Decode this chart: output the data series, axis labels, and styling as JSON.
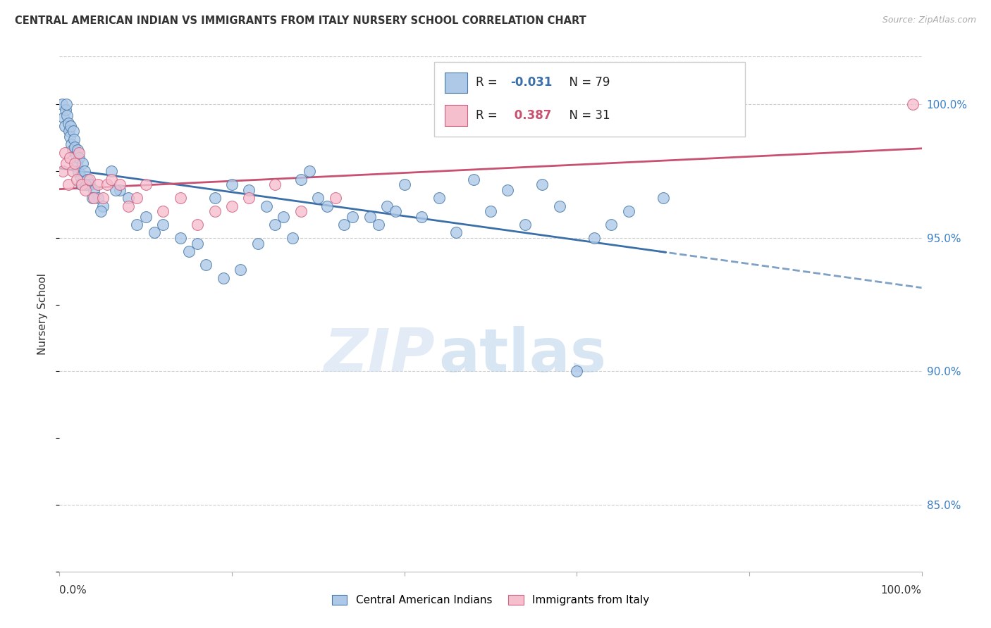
{
  "title": "CENTRAL AMERICAN INDIAN VS IMMIGRANTS FROM ITALY NURSERY SCHOOL CORRELATION CHART",
  "source": "Source: ZipAtlas.com",
  "ylabel": "Nursery School",
  "r_blue": -0.031,
  "n_blue": 79,
  "r_pink": 0.387,
  "n_pink": 31,
  "xlim": [
    0.0,
    100.0
  ],
  "ylim": [
    82.5,
    101.8
  ],
  "yticks": [
    85.0,
    90.0,
    95.0,
    100.0
  ],
  "blue_color": "#aec9e8",
  "blue_edge_color": "#4878a8",
  "blue_line_color": "#3b6fa8",
  "pink_color": "#f5bfce",
  "pink_edge_color": "#d06080",
  "pink_line_color": "#c85070",
  "legend_r_blue_color": "#3b6fa8",
  "legend_r_pink_color": "#c85070",
  "watermark_zip": "ZIP",
  "watermark_atlas": "atlas",
  "background_color": "#ffffff",
  "blue_scatter_x": [
    0.3,
    0.5,
    0.6,
    0.7,
    0.8,
    0.9,
    1.0,
    1.1,
    1.2,
    1.3,
    1.4,
    1.5,
    1.6,
    1.7,
    1.8,
    1.9,
    2.0,
    2.1,
    2.2,
    2.3,
    2.4,
    2.5,
    2.7,
    2.9,
    3.2,
    3.5,
    4.0,
    4.5,
    5.0,
    6.0,
    7.0,
    8.0,
    10.0,
    12.0,
    14.0,
    16.0,
    18.0,
    20.0,
    22.0,
    24.0,
    26.0,
    28.0,
    30.0,
    33.0,
    36.0,
    38.0,
    40.0,
    44.0,
    48.0,
    52.0,
    56.0,
    60.0,
    3.0,
    3.8,
    4.8,
    6.5,
    9.0,
    11.0,
    15.0,
    17.0,
    19.0,
    21.0,
    23.0,
    25.0,
    27.0,
    29.0,
    31.0,
    34.0,
    37.0,
    39.0,
    42.0,
    46.0,
    50.0,
    54.0,
    58.0,
    62.0,
    64.0,
    66.0,
    70.0
  ],
  "blue_scatter_y": [
    100.0,
    99.5,
    99.2,
    99.8,
    100.0,
    99.6,
    99.3,
    99.0,
    98.8,
    99.2,
    98.5,
    98.3,
    99.0,
    98.7,
    98.4,
    98.1,
    97.8,
    98.3,
    97.5,
    98.0,
    97.3,
    97.0,
    97.8,
    97.5,
    97.2,
    97.0,
    96.8,
    96.5,
    96.2,
    97.5,
    96.8,
    96.5,
    95.8,
    95.5,
    95.0,
    94.8,
    96.5,
    97.0,
    96.8,
    96.2,
    95.8,
    97.2,
    96.5,
    95.5,
    95.8,
    96.2,
    97.0,
    96.5,
    97.2,
    96.8,
    97.0,
    90.0,
    97.0,
    96.5,
    96.0,
    96.8,
    95.5,
    95.2,
    94.5,
    94.0,
    93.5,
    93.8,
    94.8,
    95.5,
    95.0,
    97.5,
    96.2,
    95.8,
    95.5,
    96.0,
    95.8,
    95.2,
    96.0,
    95.5,
    96.2,
    95.0,
    95.5,
    96.0,
    96.5
  ],
  "pink_scatter_x": [
    0.4,
    0.6,
    0.8,
    1.0,
    1.2,
    1.5,
    1.8,
    2.0,
    2.3,
    2.6,
    3.0,
    3.5,
    4.0,
    4.5,
    5.0,
    5.5,
    6.0,
    7.0,
    8.0,
    9.0,
    10.0,
    12.0,
    14.0,
    16.0,
    18.0,
    20.0,
    22.0,
    25.0,
    28.0,
    32.0,
    99.0
  ],
  "pink_scatter_y": [
    97.5,
    98.2,
    97.8,
    97.0,
    98.0,
    97.5,
    97.8,
    97.2,
    98.2,
    97.0,
    96.8,
    97.2,
    96.5,
    97.0,
    96.5,
    97.0,
    97.2,
    97.0,
    96.2,
    96.5,
    97.0,
    96.0,
    96.5,
    95.5,
    96.0,
    96.2,
    96.5,
    97.0,
    96.0,
    96.5,
    100.0
  ]
}
